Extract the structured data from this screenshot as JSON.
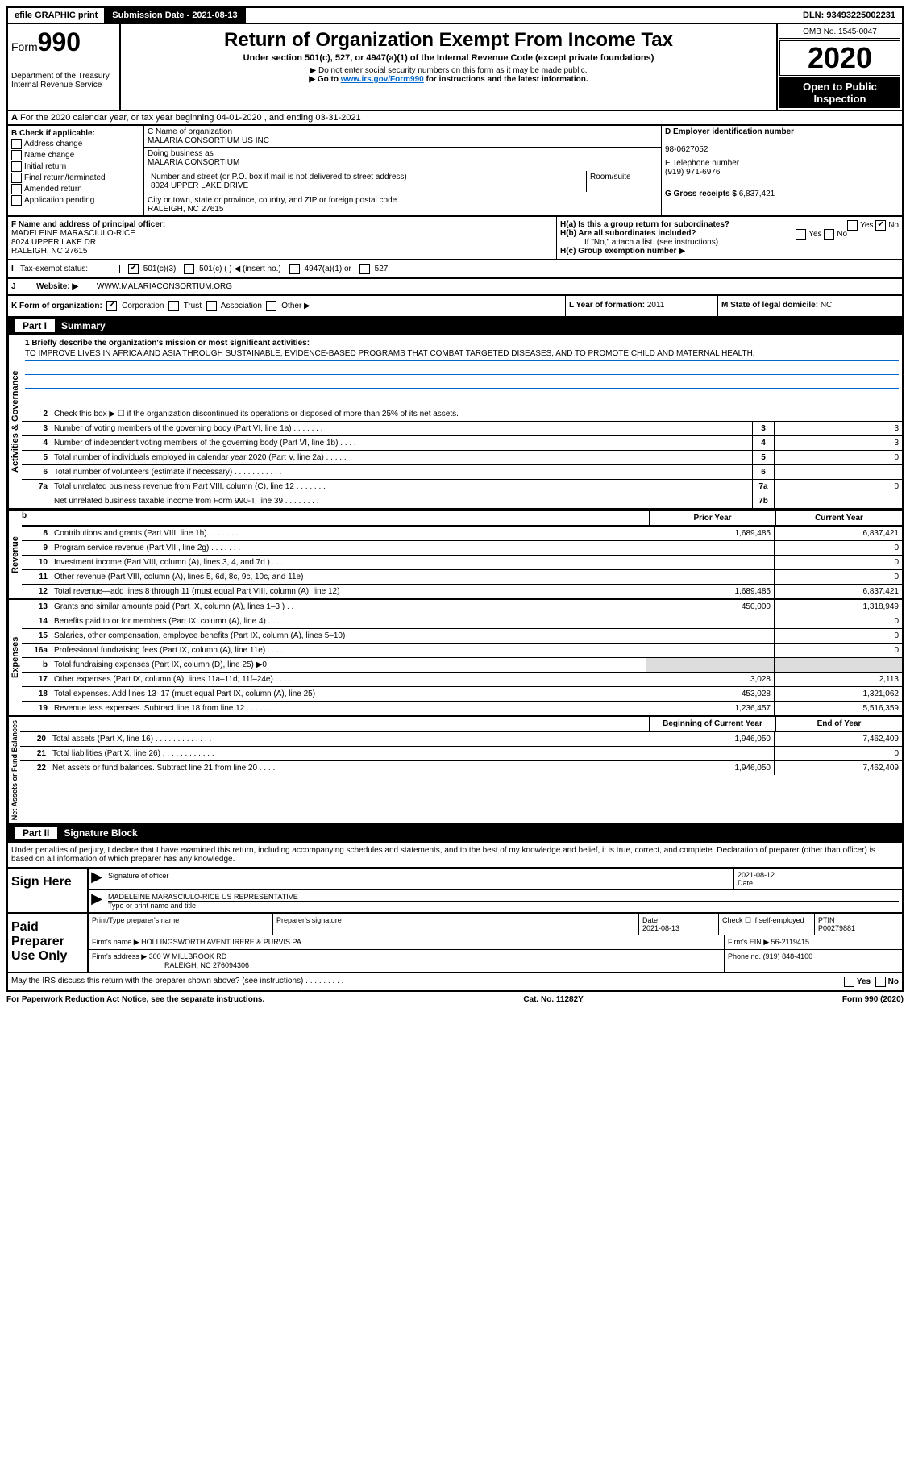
{
  "top": {
    "efile": "efile GRAPHIC print",
    "submission": "Submission Date - 2021-08-13",
    "dln": "DLN: 93493225002231"
  },
  "header": {
    "form_prefix": "Form",
    "form_num": "990",
    "title": "Return of Organization Exempt From Income Tax",
    "subtitle": "Under section 501(c), 527, or 4947(a)(1) of the Internal Revenue Code (except private foundations)",
    "note1": "▶ Do not enter social security numbers on this form as it may be made public.",
    "note2_pre": "▶ Go to ",
    "note2_link": "www.irs.gov/Form990",
    "note2_post": " for instructions and the latest information.",
    "dept": "Department of the Treasury\nInternal Revenue Service",
    "omb": "OMB No. 1545-0047",
    "year": "2020",
    "open": "Open to Public Inspection"
  },
  "row_a": {
    "prefix": "A",
    "text": "For the 2020 calendar year, or tax year beginning 04-01-2020    , and ending 03-31-2021"
  },
  "col_b": {
    "header": "B Check if applicable:",
    "opts": [
      "Address change",
      "Name change",
      "Initial return",
      "Final return/terminated",
      "Amended return",
      "Application pending"
    ]
  },
  "col_c": {
    "name_label": "C Name of organization",
    "name": "MALARIA CONSORTIUM US INC",
    "dba_label": "Doing business as",
    "dba": "MALARIA CONSORTIUM",
    "addr_label": "Number and street (or P.O. box if mail is not delivered to street address)",
    "addr": "8024 UPPER LAKE DRIVE",
    "suite_label": "Room/suite",
    "city_label": "City or town, state or province, country, and ZIP or foreign postal code",
    "city": "RALEIGH, NC  27615"
  },
  "col_d": {
    "d_label": "D Employer identification number",
    "d_val": "98-0627052",
    "e_label": "E Telephone number",
    "e_val": "(919) 971-6976",
    "g_label": "G Gross receipts $",
    "g_val": "6,837,421"
  },
  "section_f": {
    "f_label": "F  Name and address of principal officer:",
    "name": "MADELEINE MARASCIULO-RICE",
    "addr": "8024 UPPER LAKE DR",
    "city": "RALEIGH, NC  27615"
  },
  "section_h": {
    "ha": "H(a)  Is this a group return for subordinates?",
    "hb": "H(b)  Are all subordinates included?",
    "hb_note": "If \"No,\" attach a list. (see instructions)",
    "hc": "H(c)  Group exemption number ▶",
    "yes": "Yes",
    "no": "No"
  },
  "tax_status": {
    "i_label": "I",
    "label": "Tax-exempt status:",
    "opts": [
      "501(c)(3)",
      "501(c) (  ) ◀ (insert no.)",
      "4947(a)(1) or",
      "527"
    ]
  },
  "website": {
    "j_label": "J",
    "label": "Website: ▶",
    "val": "WWW.MALARIACONSORTIUM.ORG"
  },
  "klm": {
    "k": "K Form of organization:",
    "k_opts": [
      "Corporation",
      "Trust",
      "Association",
      "Other ▶"
    ],
    "l_label": "L Year of formation:",
    "l_val": "2011",
    "m_label": "M State of legal domicile:",
    "m_val": "NC"
  },
  "part1": {
    "header_num": "Part I",
    "header_text": "Summary",
    "mission_label": "1  Briefly describe the organization's mission or most significant activities:",
    "mission": "TO IMPROVE LIVES IN AFRICA AND ASIA THROUGH SUSTAINABLE, EVIDENCE-BASED PROGRAMS THAT COMBAT TARGETED DISEASES, AND TO PROMOTE CHILD AND MATERNAL HEALTH.",
    "line2": "Check this box ▶ ☐  if the organization discontinued its operations or disposed of more than 25% of its net assets.",
    "vert_act": "Activities & Governance",
    "vert_rev": "Revenue",
    "vert_exp": "Expenses",
    "vert_net": "Net Assets or Fund Balances",
    "lines_act": [
      {
        "n": "3",
        "d": "Number of voting members of the governing body (Part VI, line 1a)  .    .    .    .    .    .    .",
        "b": "3",
        "v": "3"
      },
      {
        "n": "4",
        "d": "Number of independent voting members of the governing body (Part VI, line 1b)  .    .    .    .",
        "b": "4",
        "v": "3"
      },
      {
        "n": "5",
        "d": "Total number of individuals employed in calendar year 2020 (Part V, line 2a)  .    .    .    .    .",
        "b": "5",
        "v": "0"
      },
      {
        "n": "6",
        "d": "Total number of volunteers (estimate if necessary)    .    .    .    .    .    .    .    .    .    .    .",
        "b": "6",
        "v": ""
      },
      {
        "n": "7a",
        "d": "Total unrelated business revenue from Part VIII, column (C), line 12  .    .    .    .    .    .    .",
        "b": "7a",
        "v": "0"
      },
      {
        "n": "",
        "d": "Net unrelated business taxable income from Form 990-T, line 39   .    .    .    .    .    .    .    .",
        "b": "7b",
        "v": ""
      }
    ],
    "col_prior": "Prior Year",
    "col_current": "Current Year",
    "lines_rev": [
      {
        "n": "8",
        "d": "Contributions and grants (Part VIII, line 1h)   .    .    .    .    .    .    .",
        "p": "1,689,485",
        "c": "6,837,421"
      },
      {
        "n": "9",
        "d": "Program service revenue (Part VIII, line 2g)   .    .    .    .    .    .    .",
        "p": "",
        "c": "0"
      },
      {
        "n": "10",
        "d": "Investment income (Part VIII, column (A), lines 3, 4, and 7d )   .    .    .",
        "p": "",
        "c": "0"
      },
      {
        "n": "11",
        "d": "Other revenue (Part VIII, column (A), lines 5, 6d, 8c, 9c, 10c, and 11e)",
        "p": "",
        "c": "0"
      },
      {
        "n": "12",
        "d": "Total revenue—add lines 8 through 11 (must equal Part VIII, column (A), line 12)",
        "p": "1,689,485",
        "c": "6,837,421"
      }
    ],
    "lines_exp": [
      {
        "n": "13",
        "d": "Grants and similar amounts paid (Part IX, column (A), lines 1–3 )  .    .    .",
        "p": "450,000",
        "c": "1,318,949"
      },
      {
        "n": "14",
        "d": "Benefits paid to or for members (Part IX, column (A), line 4)   .    .    .    .",
        "p": "",
        "c": "0"
      },
      {
        "n": "15",
        "d": "Salaries, other compensation, employee benefits (Part IX, column (A), lines 5–10)",
        "p": "",
        "c": "0"
      },
      {
        "n": "16a",
        "d": "Professional fundraising fees (Part IX, column (A), line 11e)  .    .    .    .",
        "p": "",
        "c": "0"
      },
      {
        "n": "b",
        "d": "Total fundraising expenses (Part IX, column (D), line 25) ▶0",
        "p": "shaded",
        "c": "shaded"
      },
      {
        "n": "17",
        "d": "Other expenses (Part IX, column (A), lines 11a–11d, 11f–24e)  .    .    .    .",
        "p": "3,028",
        "c": "2,113"
      },
      {
        "n": "18",
        "d": "Total expenses. Add lines 13–17 (must equal Part IX, column (A), line 25)",
        "p": "453,028",
        "c": "1,321,062"
      },
      {
        "n": "19",
        "d": "Revenue less expenses. Subtract line 18 from line 12 .    .    .    .    .    .    .",
        "p": "1,236,457",
        "c": "5,516,359"
      }
    ],
    "col_begin": "Beginning of Current Year",
    "col_end": "End of Year",
    "lines_net": [
      {
        "n": "20",
        "d": "Total assets (Part X, line 16)  .    .    .    .    .    .    .    .    .    .    .    .    .",
        "p": "1,946,050",
        "c": "7,462,409"
      },
      {
        "n": "21",
        "d": "Total liabilities (Part X, line 26)  .    .    .    .    .    .    .    .    .    .    .    .",
        "p": "",
        "c": "0"
      },
      {
        "n": "22",
        "d": "Net assets or fund balances. Subtract line 21 from line 20 .    .    .    .",
        "p": "1,946,050",
        "c": "7,462,409"
      }
    ]
  },
  "part2": {
    "header_num": "Part II",
    "header_text": "Signature Block",
    "decl": "Under penalties of perjury, I declare that I have examined this return, including accompanying schedules and statements, and to the best of my knowledge and belief, it is true, correct, and complete. Declaration of preparer (other than officer) is based on all information of which preparer has any knowledge.",
    "sign_here": "Sign Here",
    "sig_officer": "Signature of officer",
    "date_label": "Date",
    "date_val": "2021-08-12",
    "name_title": "MADELEINE MARASCIULO-RICE  US REPRESENTATIVE",
    "name_title_label": "Type or print name and title",
    "paid": "Paid Preparer Use Only",
    "prep_name_label": "Print/Type preparer's name",
    "prep_sig_label": "Preparer's signature",
    "prep_date_label": "Date",
    "prep_date": "2021-08-13",
    "check_self": "Check ☐ if self-employed",
    "ptin_label": "PTIN",
    "ptin": "P00279881",
    "firm_name_label": "Firm's name    ▶",
    "firm_name": "HOLLINGSWORTH AVENT IRERE & PURVIS PA",
    "firm_ein_label": "Firm's EIN ▶",
    "firm_ein": "56-2119415",
    "firm_addr_label": "Firm's address ▶",
    "firm_addr1": "300 W MILLBROOK RD",
    "firm_addr2": "RALEIGH, NC  276094306",
    "phone_label": "Phone no.",
    "phone": "(919) 848-4100",
    "discuss": "May the IRS discuss this return with the preparer shown above? (see instructions)   .    .    .    .    .    .    .    .    .    .",
    "yes": "Yes",
    "no": "No"
  },
  "footer": {
    "left": "For Paperwork Reduction Act Notice, see the separate instructions.",
    "mid": "Cat. No. 11282Y",
    "right": "Form 990 (2020)"
  }
}
